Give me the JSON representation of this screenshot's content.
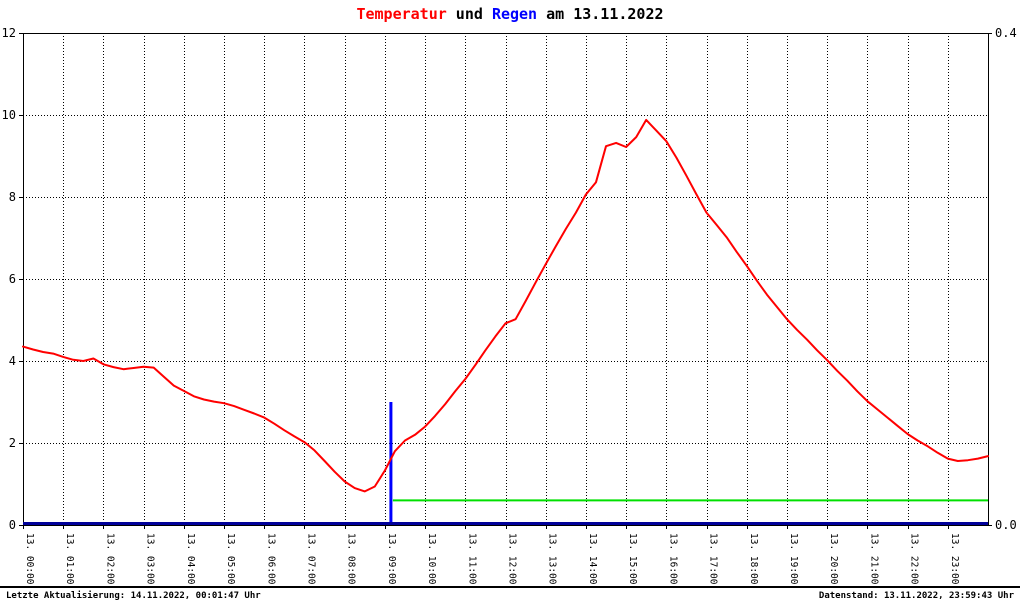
{
  "title": {
    "part_temperatur": "Temperatur",
    "part_und": " und ",
    "part_regen": "Regen",
    "part_date": " am 13.11.2022",
    "temperatur_color": "#ff0000",
    "regen_color": "#0000ff",
    "text_color": "#000000"
  },
  "footer": {
    "last_update": "Letzte Aktualisierung: 14.11.2022, 00:01:47 Uhr",
    "data_state": "Datenstand: 13.11.2022, 23:59:43 Uhr"
  },
  "chart_data": {
    "type": "line",
    "title": "Temperatur und Regen am 13.11.2022",
    "grid": "dotted",
    "x_axis": {
      "range_hours": [
        0,
        24
      ],
      "tick_labels": [
        "13. 00:00",
        "13. 01:00",
        "13. 02:00",
        "13. 03:00",
        "13. 04:00",
        "13. 05:00",
        "13. 06:00",
        "13. 07:00",
        "13. 08:00",
        "13. 09:00",
        "13. 10:00",
        "13. 11:00",
        "13. 12:00",
        "13. 13:00",
        "13. 14:00",
        "13. 15:00",
        "13. 16:00",
        "13. 17:00",
        "13. 18:00",
        "13. 19:00",
        "13. 20:00",
        "13. 21:00",
        "13. 22:00",
        "13. 23:00"
      ]
    },
    "y_axis_left": {
      "range": [
        0,
        12
      ],
      "ticks": [
        0,
        2,
        4,
        6,
        8,
        10,
        12
      ]
    },
    "y_axis_right": {
      "range": [
        0.0,
        0.4
      ],
      "ticks": [
        {
          "label": "0.4",
          "left_equiv": 12
        },
        {
          "label": "0.0",
          "left_equiv": 0
        }
      ]
    },
    "grid_h_lines": [
      2,
      4,
      6,
      8,
      10
    ],
    "series": [
      {
        "name": "Temperatur",
        "color": "#ff0000",
        "kind": "line",
        "x_start_hour": 0,
        "x_step_hours": 0.25,
        "values": [
          4.35,
          4.28,
          4.22,
          4.18,
          4.1,
          4.03,
          4.0,
          4.06,
          3.92,
          3.85,
          3.8,
          3.83,
          3.86,
          3.84,
          3.62,
          3.4,
          3.27,
          3.14,
          3.06,
          3.01,
          2.97,
          2.9,
          2.81,
          2.72,
          2.62,
          2.47,
          2.31,
          2.16,
          2.02,
          1.82,
          1.56,
          1.3,
          1.06,
          0.9,
          0.82,
          0.94,
          1.33,
          1.8,
          2.06,
          2.2,
          2.4,
          2.66,
          2.95,
          3.26,
          3.56,
          3.9,
          4.26,
          4.6,
          4.92,
          5.02,
          5.46,
          5.92,
          6.36,
          6.8,
          7.22,
          7.62,
          8.06,
          8.36,
          9.24,
          9.32,
          9.22,
          9.46,
          9.88,
          9.62,
          9.36,
          8.96,
          8.52,
          8.06,
          7.62,
          7.32,
          7.02,
          6.66,
          6.32,
          5.96,
          5.62,
          5.32,
          5.02,
          4.76,
          4.52,
          4.26,
          4.02,
          3.76,
          3.52,
          3.26,
          3.02,
          2.82,
          2.62,
          2.42,
          2.22,
          2.06,
          1.92,
          1.76,
          1.62,
          1.56,
          1.58,
          1.62,
          1.68
        ]
      },
      {
        "name": "Regen Impuls",
        "color": "#0000ff",
        "kind": "vspike",
        "x_hour": 9.15,
        "value_left_scale": 3.0,
        "value_right_scale": 0.1
      },
      {
        "name": "Regen Summe",
        "color": "#00e000",
        "kind": "hline",
        "x_start_hour": 9.2,
        "x_end_hour": 24,
        "value_left_scale": 0.6,
        "value_right_scale": 0.02
      },
      {
        "name": "Regen Basislinie",
        "color": "#000099",
        "kind": "hline",
        "x_start_hour": 0,
        "x_end_hour": 24,
        "value_left_scale": 0,
        "value_right_scale": 0.0
      }
    ]
  }
}
